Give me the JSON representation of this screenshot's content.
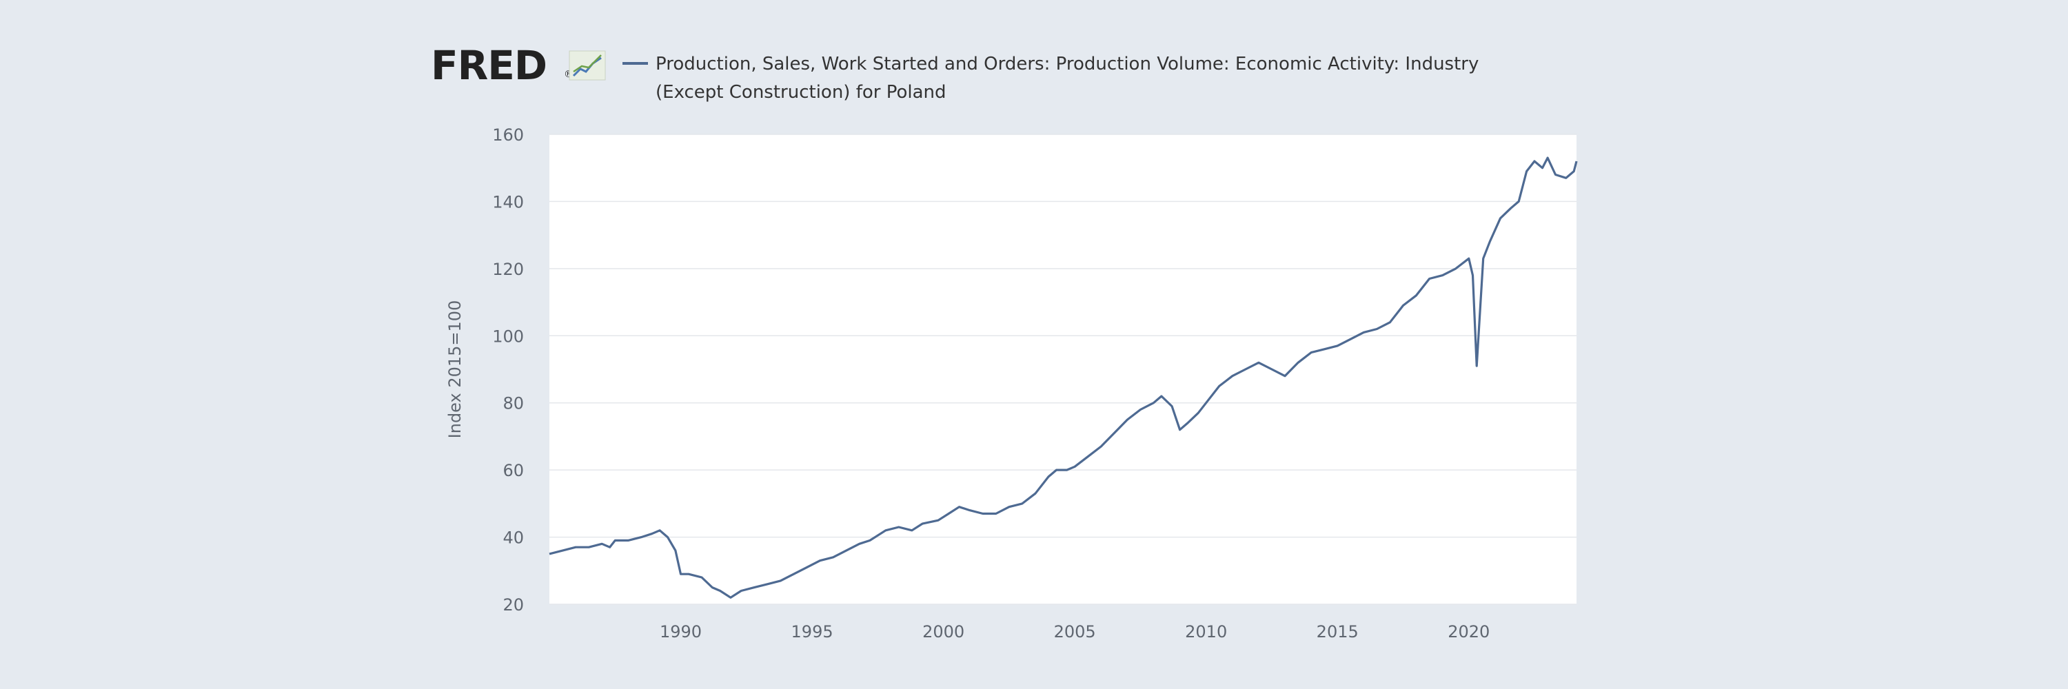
{
  "brand": {
    "logo_text": "FRED",
    "logo_mark": "®"
  },
  "colors": {
    "background": "#e5eaf0",
    "plot_background": "#ffffff",
    "gridline": "#e4e7eb",
    "series": "#4e6a92",
    "axis_text": "#5f6670",
    "title_text": "#333333",
    "logo": "#222222"
  },
  "chart_data": {
    "type": "line",
    "title": "Production, Sales, Work Started and Orders: Production Volume: Economic Activity: Industry (Except Construction) for Poland",
    "title_lines": [
      "Production, Sales, Work Started and Orders: Production Volume: Economic Activity: Industry",
      "(Except Construction) for Poland"
    ],
    "xlabel": "",
    "ylabel": "Index 2015=100",
    "xlim": [
      1985.0,
      2024.1
    ],
    "ylim": [
      20,
      160
    ],
    "yticks": [
      20,
      40,
      60,
      80,
      100,
      120,
      140,
      160
    ],
    "xticks": [
      1990,
      1995,
      2000,
      2005,
      2010,
      2015,
      2020
    ],
    "grid": "horizontal",
    "legend": "top",
    "series": [
      {
        "name": "Production, Sales, Work Started and Orders: Production Volume: Economic Activity: Industry (Except Construction) for Poland",
        "x": [
          1985.0,
          1985.5,
          1986.0,
          1986.5,
          1987.0,
          1987.3,
          1987.5,
          1988.0,
          1988.5,
          1988.9,
          1989.2,
          1989.5,
          1989.8,
          1990.0,
          1990.3,
          1990.8,
          1991.2,
          1991.5,
          1991.9,
          1992.3,
          1992.8,
          1993.3,
          1993.8,
          1994.3,
          1994.8,
          1995.3,
          1995.8,
          1996.3,
          1996.8,
          1997.2,
          1997.8,
          1998.3,
          1998.8,
          1999.2,
          1999.8,
          2000.2,
          2000.6,
          2001.0,
          2001.5,
          2002.0,
          2002.5,
          2003.0,
          2003.5,
          2004.0,
          2004.3,
          2004.7,
          2005.0,
          2005.5,
          2006.0,
          2006.5,
          2007.0,
          2007.5,
          2008.0,
          2008.3,
          2008.7,
          2009.0,
          2009.3,
          2009.7,
          2010.0,
          2010.5,
          2011.0,
          2011.5,
          2012.0,
          2012.5,
          2013.0,
          2013.5,
          2014.0,
          2014.5,
          2015.0,
          2015.5,
          2016.0,
          2016.5,
          2017.0,
          2017.5,
          2018.0,
          2018.5,
          2019.0,
          2019.5,
          2020.0,
          2020.15,
          2020.3,
          2020.55,
          2020.8,
          2021.2,
          2021.6,
          2021.9,
          2022.2,
          2022.5,
          2022.8,
          2023.0,
          2023.3,
          2023.7,
          2024.0,
          2024.1
        ],
        "values": [
          35,
          36,
          37,
          37,
          38,
          37,
          39,
          39,
          40,
          41,
          42,
          40,
          36,
          29,
          29,
          28,
          25,
          24,
          22,
          24,
          25,
          26,
          27,
          29,
          31,
          33,
          34,
          36,
          38,
          39,
          42,
          43,
          42,
          44,
          45,
          47,
          49,
          48,
          47,
          47,
          49,
          50,
          53,
          58,
          60,
          60,
          61,
          64,
          67,
          71,
          75,
          78,
          80,
          82,
          79,
          72,
          74,
          77,
          80,
          85,
          88,
          90,
          92,
          90,
          88,
          92,
          95,
          96,
          97,
          99,
          101,
          102,
          104,
          109,
          112,
          117,
          118,
          120,
          123,
          118,
          91,
          123,
          128,
          135,
          138,
          140,
          149,
          152,
          150,
          153,
          148,
          147,
          149,
          152
        ]
      }
    ]
  }
}
